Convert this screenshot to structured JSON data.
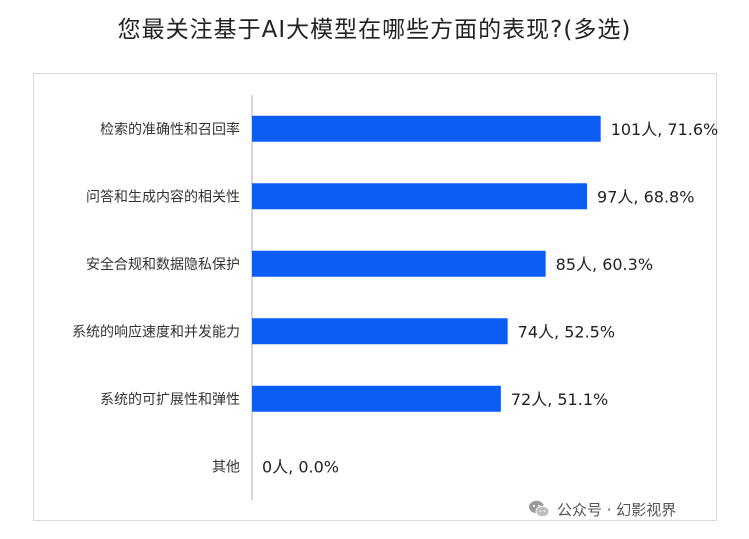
{
  "title": "您最关注基于AI大模型在哪些方面的表现?(多选)",
  "watermark": "公众号 · 幻影视界",
  "colors": {
    "bar": "#0a5ef5",
    "axis": "#c8c8c8",
    "frame": "#d9d9d9"
  },
  "chart_data": {
    "type": "bar",
    "orientation": "horizontal",
    "categories": [
      "检索的准确性和召回率",
      "问答和生成内容的相关性",
      "安全合规和数据隐私保护",
      "系统的响应速度和并发能力",
      "系统的可扩展性和弹性",
      "其他"
    ],
    "values": [
      71.6,
      68.8,
      60.3,
      52.5,
      51.1,
      0.0
    ],
    "counts": [
      101,
      97,
      85,
      74,
      72,
      0
    ],
    "data_labels": [
      "101人, 71.6%",
      "97人, 68.8%",
      "85人, 60.3%",
      "74人, 52.5%",
      "72人, 51.1%",
      "0人, 0.0%"
    ],
    "xlim": [
      0,
      100
    ],
    "grid": false,
    "legend": "none"
  }
}
